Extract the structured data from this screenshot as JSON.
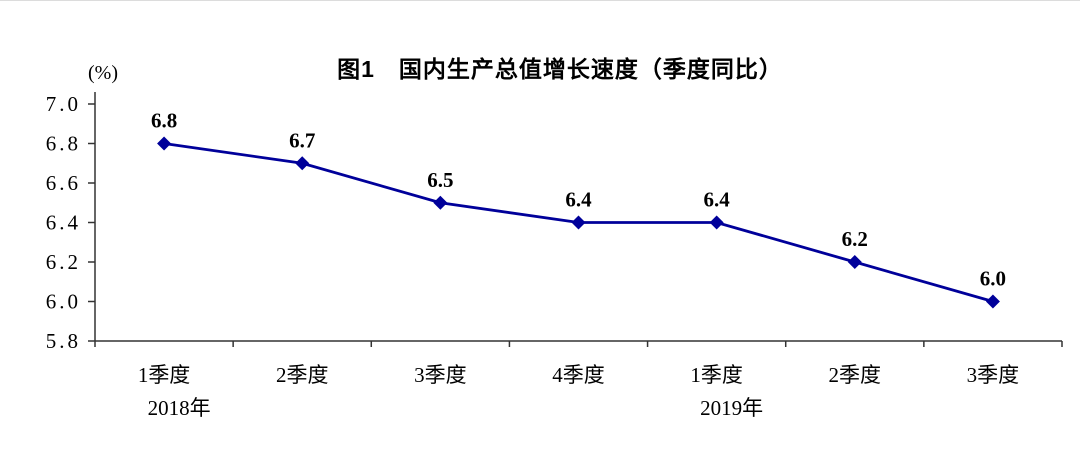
{
  "page": {
    "background": "#ffffff"
  },
  "chart_data": {
    "type": "line",
    "title": "图1　国内生产总值增长速度（季度同比）",
    "ylabel": "(%)",
    "categories": [
      "1季度",
      "2季度",
      "3季度",
      "4季度",
      "1季度",
      "2季度",
      "3季度"
    ],
    "values": [
      6.8,
      6.7,
      6.5,
      6.4,
      6.4,
      6.2,
      6.0
    ],
    "yticks": [
      7.0,
      6.8,
      6.6,
      6.4,
      6.2,
      6.0,
      5.8
    ],
    "ylim": [
      5.8,
      7.0
    ],
    "year_labels": [
      {
        "text": "2018年",
        "category_index": 0
      },
      {
        "text": "2019年",
        "category_index": 4
      }
    ],
    "line_color": "#00009A",
    "axis_color": "#333333",
    "label_color": "#000000",
    "marker": "diamond",
    "grid": false,
    "legend": "none"
  }
}
